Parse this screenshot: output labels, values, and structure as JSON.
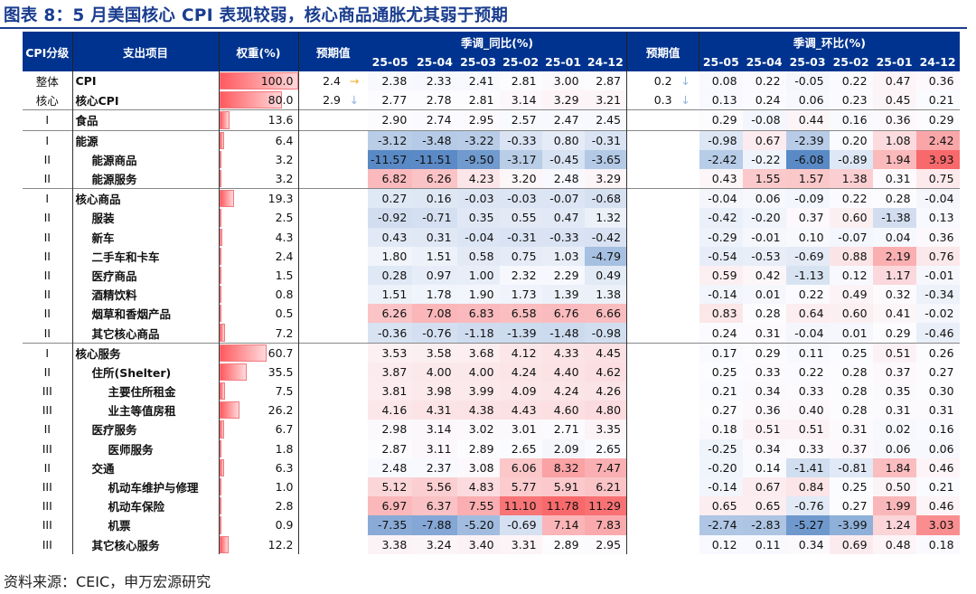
{
  "title": "图表 8：5 月美国核心 CPI 表现较弱，核心商品通胀尤其弱于预期",
  "source": "资料来源：CEIC，申万宏源研究",
  "headers": {
    "level": "CPI分级",
    "item": "支出项目",
    "weight": "权重(%)",
    "expect": "预期值",
    "yoy": "季调_同比(%)",
    "mom": "季调_环比(%)",
    "months": [
      "25-05",
      "25-04",
      "25-03",
      "25-02",
      "25-01",
      "24-12"
    ]
  },
  "colors": {
    "header": "#00338f",
    "positive": "#f8696b",
    "negative": "#5a8ac6",
    "arrow_flat": "#f0b030",
    "arrow_down": "#8fb4e0"
  },
  "rows": [
    {
      "level": "整体",
      "name": "CPI",
      "indent": 0,
      "weight": "100.0",
      "exp_yoy": "2.4",
      "arrow_yoy": "→",
      "yoy": [
        "2.38",
        "2.33",
        "2.41",
        "2.81",
        "3.00",
        "2.87"
      ],
      "exp_mom": "0.2",
      "arrow_mom": "↓",
      "mom": [
        "0.08",
        "0.22",
        "-0.05",
        "0.22",
        "0.47",
        "0.36"
      ]
    },
    {
      "level": "核心",
      "name": "核心CPI",
      "indent": 0,
      "weight": "80.0",
      "exp_yoy": "2.9",
      "arrow_yoy": "↓",
      "yoy": [
        "2.77",
        "2.78",
        "2.81",
        "3.14",
        "3.29",
        "3.21"
      ],
      "exp_mom": "0.3",
      "arrow_mom": "↓",
      "mom": [
        "0.13",
        "0.24",
        "0.06",
        "0.23",
        "0.45",
        "0.21"
      ]
    },
    {
      "level": "I",
      "name": "食品",
      "indent": 0,
      "weight": "13.6",
      "sep": true,
      "yoy": [
        "2.90",
        "2.74",
        "2.95",
        "2.57",
        "2.47",
        "2.45"
      ],
      "mom": [
        "0.29",
        "-0.08",
        "0.44",
        "0.16",
        "0.36",
        "0.29"
      ]
    },
    {
      "level": "I",
      "name": "能源",
      "indent": 0,
      "weight": "6.4",
      "sep": true,
      "yoy": [
        "-3.12",
        "-3.48",
        "-3.22",
        "-0.33",
        "0.80",
        "-0.31"
      ],
      "mom": [
        "-0.98",
        "0.67",
        "-2.39",
        "0.20",
        "1.08",
        "2.42"
      ]
    },
    {
      "level": "II",
      "name": "能源商品",
      "indent": 1,
      "weight": "3.2",
      "yoy": [
        "-11.57",
        "-11.51",
        "-9.50",
        "-3.17",
        "-0.45",
        "-3.65"
      ],
      "mom": [
        "-2.42",
        "-0.22",
        "-6.08",
        "-0.89",
        "1.94",
        "3.93"
      ]
    },
    {
      "level": "II",
      "name": "能源服务",
      "indent": 1,
      "weight": "3.2",
      "yoy": [
        "6.82",
        "6.26",
        "4.23",
        "3.20",
        "2.48",
        "3.29"
      ],
      "mom": [
        "0.43",
        "1.55",
        "1.57",
        "1.38",
        "0.31",
        "0.75"
      ]
    },
    {
      "level": "I",
      "name": "核心商品",
      "indent": 0,
      "weight": "19.3",
      "sep": true,
      "yoy": [
        "0.27",
        "0.16",
        "-0.03",
        "-0.03",
        "-0.07",
        "-0.68"
      ],
      "mom": [
        "-0.04",
        "0.06",
        "-0.09",
        "0.22",
        "0.28",
        "-0.04"
      ]
    },
    {
      "level": "II",
      "name": "服装",
      "indent": 1,
      "weight": "2.5",
      "yoy": [
        "-0.92",
        "-0.71",
        "0.35",
        "0.55",
        "0.47",
        "1.32"
      ],
      "mom": [
        "-0.42",
        "-0.20",
        "0.37",
        "0.60",
        "-1.38",
        "0.13"
      ]
    },
    {
      "level": "II",
      "name": "新车",
      "indent": 1,
      "weight": "4.3",
      "yoy": [
        "0.43",
        "0.31",
        "-0.04",
        "-0.31",
        "-0.33",
        "-0.42"
      ],
      "mom": [
        "-0.29",
        "-0.01",
        "0.10",
        "-0.07",
        "0.04",
        "0.36"
      ]
    },
    {
      "level": "II",
      "name": "二手车和卡车",
      "indent": 1,
      "weight": "2.4",
      "yoy": [
        "1.80",
        "1.51",
        "0.58",
        "0.75",
        "1.03",
        "-4.79"
      ],
      "mom": [
        "-0.54",
        "-0.53",
        "-0.69",
        "0.88",
        "2.19",
        "0.76"
      ]
    },
    {
      "level": "II",
      "name": "医疗商品",
      "indent": 1,
      "weight": "1.5",
      "yoy": [
        "0.28",
        "0.97",
        "1.00",
        "2.32",
        "2.29",
        "0.49"
      ],
      "mom": [
        "0.59",
        "0.42",
        "-1.13",
        "0.12",
        "1.17",
        "-0.01"
      ]
    },
    {
      "level": "II",
      "name": "酒精饮料",
      "indent": 1,
      "weight": "0.8",
      "yoy": [
        "1.51",
        "1.78",
        "1.90",
        "1.73",
        "1.39",
        "1.38"
      ],
      "mom": [
        "-0.14",
        "0.01",
        "0.22",
        "0.49",
        "0.32",
        "-0.34"
      ]
    },
    {
      "level": "II",
      "name": "烟草和香烟产品",
      "indent": 1,
      "weight": "0.5",
      "yoy": [
        "6.26",
        "7.08",
        "6.83",
        "6.58",
        "6.76",
        "6.66"
      ],
      "mom": [
        "0.83",
        "0.28",
        "0.64",
        "0.60",
        "0.41",
        "-0.02"
      ]
    },
    {
      "level": "II",
      "name": "其它核心商品",
      "indent": 1,
      "weight": "7.2",
      "yoy": [
        "-0.36",
        "-0.76",
        "-1.18",
        "-1.39",
        "-1.48",
        "-0.98"
      ],
      "mom": [
        "0.24",
        "0.31",
        "-0.04",
        "0.01",
        "0.29",
        "-0.46"
      ]
    },
    {
      "level": "I",
      "name": "核心服务",
      "indent": 0,
      "weight": "60.7",
      "sep": true,
      "yoy": [
        "3.53",
        "3.58",
        "3.68",
        "4.12",
        "4.33",
        "4.45"
      ],
      "mom": [
        "0.17",
        "0.29",
        "0.11",
        "0.25",
        "0.51",
        "0.26"
      ]
    },
    {
      "level": "II",
      "name": "住所(Shelter)",
      "indent": 1,
      "weight": "35.5",
      "yoy": [
        "3.87",
        "4.00",
        "4.00",
        "4.24",
        "4.40",
        "4.62"
      ],
      "mom": [
        "0.25",
        "0.33",
        "0.22",
        "0.28",
        "0.37",
        "0.27"
      ]
    },
    {
      "level": "III",
      "name": "主要住所租金",
      "indent": 2,
      "weight": "7.5",
      "yoy": [
        "3.81",
        "3.98",
        "3.99",
        "4.09",
        "4.24",
        "4.26"
      ],
      "mom": [
        "0.21",
        "0.34",
        "0.33",
        "0.28",
        "0.35",
        "0.30"
      ]
    },
    {
      "level": "III",
      "name": "业主等值房租",
      "indent": 2,
      "weight": "26.2",
      "yoy": [
        "4.16",
        "4.31",
        "4.38",
        "4.43",
        "4.60",
        "4.80"
      ],
      "mom": [
        "0.27",
        "0.36",
        "0.40",
        "0.28",
        "0.31",
        "0.31"
      ]
    },
    {
      "level": "II",
      "name": "医疗服务",
      "indent": 1,
      "weight": "6.7",
      "yoy": [
        "2.98",
        "3.14",
        "3.02",
        "3.01",
        "2.71",
        "3.35"
      ],
      "mom": [
        "0.18",
        "0.51",
        "0.51",
        "0.31",
        "0.02",
        "0.16"
      ]
    },
    {
      "level": "III",
      "name": "医师服务",
      "indent": 2,
      "weight": "1.8",
      "yoy": [
        "2.87",
        "3.11",
        "2.89",
        "2.65",
        "2.09",
        "2.65"
      ],
      "mom": [
        "-0.25",
        "0.34",
        "0.33",
        "0.37",
        "0.06",
        "0.06"
      ]
    },
    {
      "level": "II",
      "name": "交通",
      "indent": 1,
      "weight": "6.3",
      "yoy": [
        "2.48",
        "2.37",
        "3.08",
        "6.06",
        "8.32",
        "7.47"
      ],
      "mom": [
        "-0.20",
        "0.14",
        "-1.41",
        "-0.81",
        "1.84",
        "0.46"
      ]
    },
    {
      "level": "III",
      "name": "机动车维护与修理",
      "indent": 2,
      "weight": "1.0",
      "yoy": [
        "5.12",
        "5.56",
        "4.83",
        "5.77",
        "5.91",
        "6.21"
      ],
      "mom": [
        "-0.14",
        "0.67",
        "0.84",
        "0.25",
        "0.50",
        "0.21"
      ]
    },
    {
      "level": "III",
      "name": "机动车保险",
      "indent": 2,
      "weight": "2.8",
      "yoy": [
        "6.97",
        "6.37",
        "7.55",
        "11.10",
        "11.78",
        "11.29"
      ],
      "mom": [
        "0.65",
        "0.65",
        "-0.76",
        "0.27",
        "1.99",
        "0.46"
      ]
    },
    {
      "level": "III",
      "name": "机票",
      "indent": 2,
      "weight": "0.9",
      "yoy": [
        "-7.35",
        "-7.88",
        "-5.20",
        "-0.69",
        "7.14",
        "7.83"
      ],
      "mom": [
        "-2.74",
        "-2.83",
        "-5.27",
        "-3.99",
        "1.24",
        "3.03"
      ]
    },
    {
      "level": "III",
      "name": "其它核心服务",
      "indent": 1,
      "weight": "12.2",
      "yoy": [
        "3.38",
        "3.24",
        "3.40",
        "3.31",
        "2.89",
        "2.95"
      ],
      "mom": [
        "0.12",
        "0.11",
        "0.34",
        "0.69",
        "0.48",
        "0.18"
      ]
    }
  ]
}
